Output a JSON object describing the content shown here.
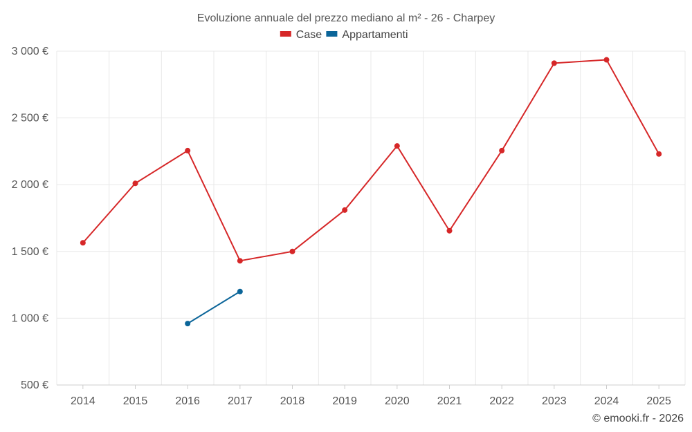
{
  "chart_data": {
    "type": "line",
    "title": "Evoluzione annuale del prezzo mediano al m² - 26 - Charpey",
    "categories": [
      "2014",
      "2015",
      "2016",
      "2017",
      "2018",
      "2019",
      "2020",
      "2021",
      "2022",
      "2023",
      "2024",
      "2025"
    ],
    "series": [
      {
        "name": "Case",
        "color": "#d62728",
        "values": [
          1565,
          2010,
          2255,
          1430,
          1500,
          1810,
          2290,
          1655,
          2255,
          2910,
          2935,
          2230
        ]
      },
      {
        "name": "Appartamenti",
        "color": "#0b6599",
        "values": [
          null,
          null,
          960,
          1200,
          null,
          null,
          null,
          null,
          null,
          null,
          null,
          null
        ]
      }
    ],
    "ylim": [
      500,
      3000
    ],
    "yticks": [
      500,
      1000,
      1500,
      2000,
      2500,
      3000
    ],
    "ytick_labels": [
      "500 €",
      "1 000 €",
      "1 500 €",
      "2 000 €",
      "2 500 €",
      "3 000 €"
    ],
    "xlabel": "",
    "ylabel": "",
    "grid": true,
    "legend_position": "top-center"
  },
  "credit": "© emooki.fr - 2026"
}
